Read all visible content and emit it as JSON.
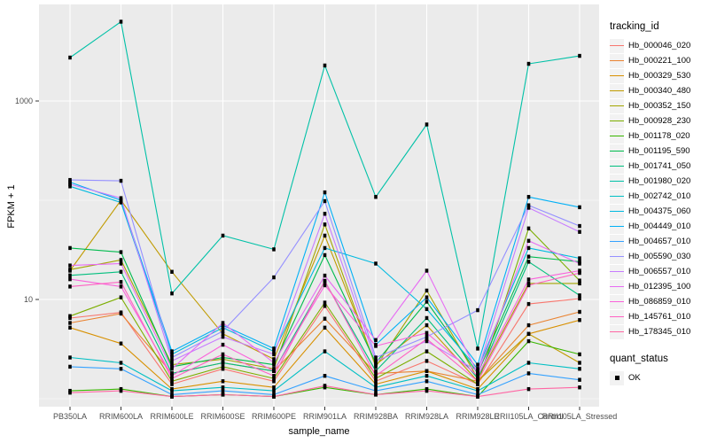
{
  "chart_data": {
    "type": "line",
    "title": "",
    "xlabel": "sample_name",
    "ylabel": "FPKM + 1",
    "y_scale": "log10",
    "legend_title": "tracking_id",
    "legend_position": "right",
    "panel_bg": "#EBEBEB",
    "grid_color": "#FFFFFF",
    "tick_label_color": "#4D4D4D",
    "point_color": "#000000",
    "point_shape": "square",
    "y_ticks": [
      {
        "label": "1000",
        "value": 1000
      },
      {
        "label": "10",
        "value": 10
      }
    ],
    "y_minor_values": [
      100,
      1
    ],
    "ylim": [
      0.9,
      9000
    ],
    "categories": [
      "PB350LA",
      "RRIM600LA",
      "RRIM600LE",
      "RRIM600SE",
      "RRIM600PE",
      "RRIM901LA",
      "RRIM928BA",
      "RRIM928LA",
      "RRIM928LE",
      "RRII105LA_Control",
      "RRII105LA_Stressed"
    ],
    "series": [
      {
        "name": "Hb_000046_020",
        "color": "#F8766D",
        "values": [
          6.5,
          7.4,
          1.4,
          2.0,
          1.5,
          8.6,
          1.5,
          2.4,
          1.4,
          9.0,
          10.2
        ]
      },
      {
        "name": "Hb_000221_100",
        "color": "#EA8331",
        "values": [
          5.8,
          7.2,
          1.8,
          2.3,
          1.9,
          6.4,
          1.8,
          1.9,
          1.5,
          5.5,
          7.5
        ]
      },
      {
        "name": "Hb_000329_530",
        "color": "#D89000",
        "values": [
          5.2,
          3.6,
          1.25,
          1.5,
          1.3,
          5.2,
          1.4,
          1.9,
          1.25,
          4.5,
          6.2
        ]
      },
      {
        "name": "Hb_000340_480",
        "color": "#C09B00",
        "values": [
          19.5,
          100,
          19,
          4.5,
          2.5,
          44,
          2.2,
          5.5,
          1.5,
          4.5,
          2.3
        ]
      },
      {
        "name": "Hb_000352_150",
        "color": "#A3A500",
        "values": [
          20,
          25,
          2.2,
          2.5,
          2.0,
          57,
          2.1,
          12.3,
          1.6,
          14.5,
          14.5
        ]
      },
      {
        "name": "Hb_000928_230",
        "color": "#7CAE00",
        "values": [
          6.8,
          10.5,
          1.5,
          2.1,
          1.6,
          9.3,
          1.6,
          3.0,
          1.4,
          52,
          15.5
        ]
      },
      {
        "name": "Hb_001178_020",
        "color": "#39B600",
        "values": [
          1.2,
          1.25,
          1.05,
          1.1,
          1.05,
          1.3,
          1.1,
          1.25,
          1.05,
          3.8,
          2.8
        ]
      },
      {
        "name": "Hb_001195_590",
        "color": "#00BB4E",
        "values": [
          33,
          30,
          2.1,
          2.6,
          2.2,
          28,
          2.3,
          9.5,
          1.8,
          27,
          24
        ]
      },
      {
        "name": "Hb_001741_050",
        "color": "#00BF7D",
        "values": [
          17.5,
          19,
          1.8,
          2.3,
          1.9,
          15.2,
          1.9,
          6.5,
          1.6,
          24,
          11
        ]
      },
      {
        "name": "Hb_001980_020",
        "color": "#00C1A7",
        "values": [
          2740,
          6300,
          11.5,
          44,
          32,
          2280,
          108,
          580,
          3.2,
          2370,
          2850
        ]
      },
      {
        "name": "Hb_002742_010",
        "color": "#00BFC4",
        "values": [
          2.6,
          2.3,
          1.2,
          1.3,
          1.2,
          3.0,
          1.3,
          1.7,
          1.2,
          2.3,
          2.0
        ]
      },
      {
        "name": "Hb_004375_060",
        "color": "#00BAE0",
        "values": [
          138,
          95,
          2.8,
          5.2,
          3.0,
          33,
          23,
          8.0,
          2.0,
          33,
          26
        ]
      },
      {
        "name": "Hb_004449_010",
        "color": "#00B0F6",
        "values": [
          152,
          100,
          3.0,
          5.5,
          3.2,
          120,
          3.5,
          10.5,
          2.2,
          108,
          85
        ]
      },
      {
        "name": "Hb_004657_010",
        "color": "#35A2FF",
        "values": [
          2.1,
          2.0,
          1.1,
          1.2,
          1.1,
          1.7,
          1.2,
          1.5,
          1.1,
          1.8,
          1.55
        ]
      },
      {
        "name": "Hb_005590_030",
        "color": "#9590FF",
        "values": [
          160,
          157,
          2.6,
          4.8,
          16.7,
          98,
          2.6,
          4.2,
          7.8,
          89,
          55
        ]
      },
      {
        "name": "Hb_006557_010",
        "color": "#C77CFF",
        "values": [
          145,
          105,
          2.4,
          4.2,
          2.8,
          73,
          2.4,
          3.8,
          1.9,
          84,
          48
        ]
      },
      {
        "name": "Hb_012395_100",
        "color": "#E76BF3",
        "values": [
          22,
          23,
          2.0,
          5.8,
          2.3,
          17.4,
          3.9,
          19.5,
          1.8,
          39,
          23
        ]
      },
      {
        "name": "Hb_086859_010",
        "color": "#FA62DB",
        "values": [
          16,
          13.5,
          1.7,
          3.5,
          1.9,
          13.9,
          3.4,
          4.6,
          1.7,
          15.9,
          19.5
        ]
      },
      {
        "name": "Hb_145761_010",
        "color": "#FF61C3",
        "values": [
          13.5,
          15,
          1.6,
          2.8,
          1.7,
          15.4,
          1.7,
          4.0,
          1.5,
          13.9,
          18.5
        ]
      },
      {
        "name": "Hb_178345_010",
        "color": "#FF67A4",
        "values": [
          1.15,
          1.2,
          1.05,
          1.1,
          1.05,
          1.35,
          1.1,
          1.2,
          1.05,
          1.25,
          1.3
        ]
      }
    ],
    "quant_legend": {
      "title": "quant_status",
      "items": [
        {
          "label": "OK",
          "marker": "black-square"
        }
      ]
    }
  }
}
